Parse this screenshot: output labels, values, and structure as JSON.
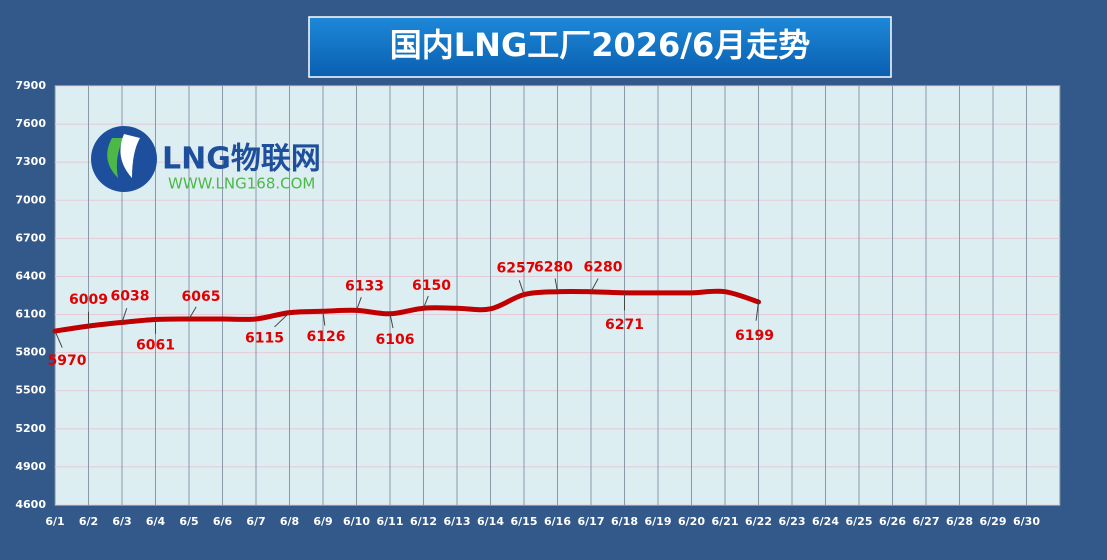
{
  "chart_data": {
    "type": "line",
    "title": "国内LNG工厂2026/6月走势",
    "logo": {
      "name": "LNG物联网",
      "url": "WWW.LNG168.COM"
    },
    "categories": [
      "6/1",
      "6/2",
      "6/3",
      "6/4",
      "6/5",
      "6/6",
      "6/7",
      "6/8",
      "6/9",
      "6/10",
      "6/11",
      "6/12",
      "6/13",
      "6/14",
      "6/15",
      "6/16",
      "6/17",
      "6/18",
      "6/19",
      "6/20",
      "6/21",
      "6/22",
      "6/23",
      "6/24",
      "6/25",
      "6/26",
      "6/27",
      "6/28",
      "6/29",
      "6/30"
    ],
    "series": [
      {
        "color": "#c00000",
        "values": [
          5970,
          6009,
          6038,
          6061,
          6065,
          6065,
          6065,
          6115,
          6126,
          6133,
          6106,
          6150,
          6150,
          6145,
          6257,
          6280,
          6280,
          6271,
          6271,
          6271,
          6280,
          6199,
          null,
          null,
          null,
          null,
          null,
          null,
          null,
          null
        ],
        "value_labels": [
          "5970",
          "6009",
          "6038",
          "6061",
          "6065",
          null,
          null,
          "6115",
          "6126",
          "6133",
          "6106",
          "6150",
          null,
          null,
          "6257",
          "6280",
          "6280",
          "6271",
          null,
          null,
          null,
          "6199",
          null,
          null,
          null,
          null,
          null,
          null,
          null,
          null
        ]
      }
    ],
    "ylim": [
      4600,
      7900
    ],
    "yticks": [
      4600,
      4900,
      5200,
      5500,
      5800,
      6100,
      6400,
      6700,
      7000,
      7300,
      7600,
      7900
    ],
    "grid": true
  }
}
